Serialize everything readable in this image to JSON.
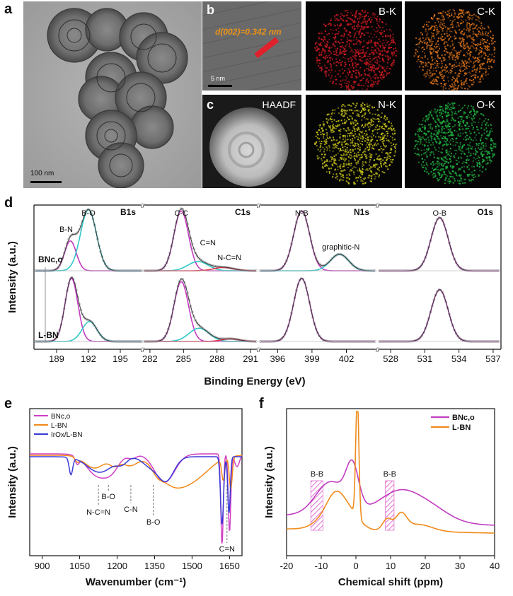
{
  "figure": {
    "panels": {
      "a": {
        "letter": "a",
        "scale_bar": "100 nm"
      },
      "b": {
        "letter": "b",
        "d_spacing": "d(002)=0.342 nm",
        "scale_bar": "5 nm"
      },
      "c": {
        "letter": "c",
        "haadf_label": "HAADF"
      },
      "maps": [
        {
          "label": "B-K",
          "color": "#cc1a22"
        },
        {
          "label": "C-K",
          "color": "#d8701a"
        },
        {
          "label": "N-K",
          "color": "#c7c21a"
        },
        {
          "label": "O-K",
          "color": "#20b040"
        }
      ]
    }
  },
  "chart_data": [
    {
      "id": "d",
      "type": "line",
      "letter": "d",
      "ylabel": "Intensity (a.u.)",
      "xlabel": "Binding Energy (eV)",
      "samples": [
        "BNc,o",
        "L-BN"
      ],
      "segments": [
        {
          "region": "B1s",
          "xlim": [
            187,
            197
          ],
          "ticks": [
            "189",
            "192",
            "195"
          ],
          "peaks_top": [
            {
              "label": "B-N",
              "pos": 190.3
            },
            {
              "label": "B-O",
              "pos": 192.0
            }
          ],
          "peaks_bottom": [
            {
              "label": "B-N",
              "pos": 190.4
            },
            {
              "label": "B-O",
              "pos": 192.1
            }
          ]
        },
        {
          "region": "C1s",
          "xlim": [
            281.5,
            291.5
          ],
          "ticks": [
            "282",
            "285",
            "288",
            "291"
          ],
          "peaks_top": [
            {
              "label": "C-C",
              "pos": 284.8
            },
            {
              "label": "C=N",
              "pos": 286.3
            },
            {
              "label": "N-C=N",
              "pos": 288.6
            }
          ],
          "peaks_bottom": [
            {
              "label": "C-C",
              "pos": 284.8
            },
            {
              "label": "C=N",
              "pos": 286.4
            }
          ]
        },
        {
          "region": "N1s",
          "xlim": [
            394.5,
            404.5
          ],
          "ticks": [
            "396",
            "399",
            "402"
          ],
          "peaks_top": [
            {
              "label": "N-B",
              "pos": 398.1
            },
            {
              "label": "graphitic-N",
              "pos": 401.4
            }
          ],
          "peaks_bottom": [
            {
              "label": "N-B",
              "pos": 398.1
            }
          ]
        },
        {
          "region": "O1s",
          "xlim": [
            527,
            537.5
          ],
          "ticks": [
            "528",
            "531",
            "534",
            "537"
          ],
          "peaks_top": [
            {
              "label": "O-B",
              "pos": 532.3
            }
          ],
          "peaks_bottom": [
            {
              "label": "O-B",
              "pos": 532.3
            }
          ]
        }
      ]
    },
    {
      "id": "e",
      "type": "line",
      "letter": "e",
      "xlabel": "Wavenumber (cm⁻¹)",
      "ylabel": "Intensity (a.u.)",
      "xlim": [
        850,
        1700
      ],
      "ticks": [
        "900",
        "1050",
        "1200",
        "1350",
        "1500",
        "1650"
      ],
      "series": [
        {
          "name": "BNc,o",
          "color": "#d13fc5"
        },
        {
          "name": "L-BN",
          "color": "#f08a1a"
        },
        {
          "name": "IrOx/L-BN",
          "color": "#3a3ad6"
        }
      ],
      "annotations": [
        {
          "label": "N-C=N",
          "x": 1125
        },
        {
          "label": "B-O",
          "x": 1165
        },
        {
          "label": "C-N",
          "x": 1255
        },
        {
          "label": "B-O",
          "x": 1345
        },
        {
          "label": "C=N",
          "x": 1640
        }
      ]
    },
    {
      "id": "f",
      "type": "line",
      "letter": "f",
      "xlabel": "Chemical shift (ppm)",
      "ylabel": "Intensity (a.u.)",
      "xlim": [
        -20,
        40
      ],
      "ticks": [
        "-20",
        "-10",
        "0",
        "10",
        "20",
        "30",
        "40"
      ],
      "series": [
        {
          "name": "BNc,o",
          "color": "#c13dc0"
        },
        {
          "name": "L-BN",
          "color": "#f08a1a"
        }
      ],
      "annotations": [
        {
          "label": "B-B",
          "x_range": [
            -13,
            -9.5
          ]
        },
        {
          "label": "B-B",
          "x_range": [
            8.5,
            11
          ]
        }
      ]
    }
  ]
}
